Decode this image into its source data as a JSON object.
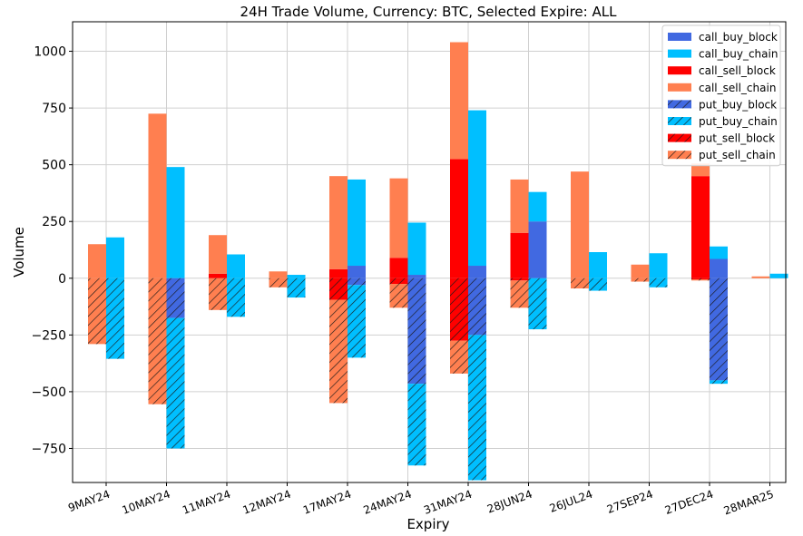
{
  "chart_data": {
    "type": "bar",
    "title": "24H Trade Volume, Currency: BTC, Selected Expire: ALL",
    "xlabel": "Expiry",
    "ylabel": "Volume",
    "ylim": [
      -900,
      1130
    ],
    "yticks": [
      -750,
      -500,
      -250,
      0,
      250,
      500,
      750,
      1000
    ],
    "ytick_labels": [
      "−750",
      "−500",
      "−250",
      "0",
      "250",
      "500",
      "750",
      "1000"
    ],
    "grid": true,
    "legend_position": "top-right",
    "categories": [
      "9MAY24",
      "10MAY24",
      "11MAY24",
      "12MAY24",
      "17MAY24",
      "24MAY24",
      "31MAY24",
      "28JUN24",
      "26JUL24",
      "27SEP24",
      "27DEC24",
      "28MAR25"
    ],
    "stacking": "calls stacked upward (block then chain), puts stacked downward (block then chain); sell series in left bar, buy series in right bar",
    "series": [
      {
        "name": "call_buy_block",
        "group": "buy",
        "sign": 1,
        "color": "#4169e1",
        "hatch": false,
        "values": [
          0,
          0,
          0,
          0,
          55,
          15,
          55,
          250,
          0,
          0,
          85,
          0
        ]
      },
      {
        "name": "call_buy_chain",
        "group": "buy",
        "sign": 1,
        "color": "#00bfff",
        "hatch": false,
        "values": [
          180,
          490,
          105,
          15,
          380,
          230,
          685,
          130,
          115,
          110,
          55,
          20
        ]
      },
      {
        "name": "call_sell_block",
        "group": "sell",
        "sign": 1,
        "color": "#ff0000",
        "hatch": false,
        "values": [
          0,
          0,
          20,
          0,
          40,
          90,
          525,
          200,
          0,
          0,
          450,
          0
        ]
      },
      {
        "name": "call_sell_chain",
        "group": "sell",
        "sign": 1,
        "color": "#ff7f50",
        "hatch": false,
        "values": [
          150,
          725,
          170,
          30,
          410,
          350,
          515,
          235,
          470,
          60,
          55,
          8
        ]
      },
      {
        "name": "put_buy_block",
        "group": "buy",
        "sign": -1,
        "color": "#4169e1",
        "hatch": true,
        "values": [
          0,
          175,
          0,
          0,
          30,
          465,
          250,
          0,
          0,
          0,
          450,
          0
        ]
      },
      {
        "name": "put_buy_chain",
        "group": "buy",
        "sign": -1,
        "color": "#00bfff",
        "hatch": true,
        "values": [
          355,
          575,
          170,
          85,
          320,
          360,
          640,
          225,
          55,
          40,
          15,
          0
        ]
      },
      {
        "name": "put_sell_block",
        "group": "sell",
        "sign": -1,
        "color": "#ff0000",
        "hatch": true,
        "values": [
          0,
          0,
          0,
          0,
          95,
          25,
          275,
          10,
          0,
          0,
          5,
          0
        ]
      },
      {
        "name": "put_sell_chain",
        "group": "sell",
        "sign": -1,
        "color": "#ff7f50",
        "hatch": true,
        "values": [
          290,
          555,
          140,
          40,
          455,
          105,
          145,
          120,
          45,
          15,
          5,
          0
        ]
      }
    ]
  }
}
